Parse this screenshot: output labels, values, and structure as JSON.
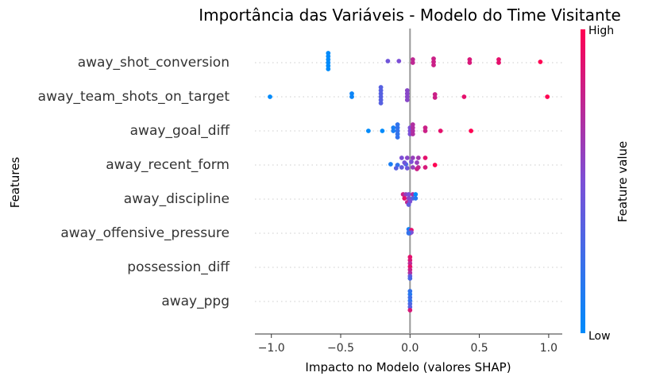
{
  "chart_data": {
    "type": "scatter",
    "title": "Importância das Variáveis - Modelo do Time Visitante",
    "xlabel": "Impacto no Modelo (valores SHAP)",
    "ylabel": "Features",
    "xlim": [
      -1.1,
      1.1
    ],
    "xticks": [
      -1.0,
      -0.5,
      0.0,
      0.5,
      1.0
    ],
    "xtick_labels": [
      "−1.0",
      "−0.5",
      "0.0",
      "0.5",
      "1.0"
    ],
    "colorbar": {
      "label": "Feature value",
      "high_label": "High",
      "low_label": "Low",
      "low_color": "#008bfb",
      "high_color": "#ff0052",
      "mid_color": "#7c4fd6"
    },
    "features": [
      {
        "name": "away_shot_conversion",
        "points": [
          {
            "x": -0.59,
            "v": 0.0,
            "dy": -12
          },
          {
            "x": -0.59,
            "v": 0.0,
            "dy": -8
          },
          {
            "x": -0.59,
            "v": 0.0,
            "dy": -4
          },
          {
            "x": -0.59,
            "v": 0.0,
            "dy": 0
          },
          {
            "x": -0.59,
            "v": 0.0,
            "dy": 4
          },
          {
            "x": -0.59,
            "v": 0.0,
            "dy": 8
          },
          {
            "x": -0.16,
            "v": 0.45,
            "dy": -2
          },
          {
            "x": -0.08,
            "v": 0.5,
            "dy": -2
          },
          {
            "x": 0.02,
            "v": 0.75,
            "dy": -4
          },
          {
            "x": 0.02,
            "v": 0.75,
            "dy": 0
          },
          {
            "x": 0.17,
            "v": 0.8,
            "dy": -5
          },
          {
            "x": 0.17,
            "v": 0.8,
            "dy": -1
          },
          {
            "x": 0.17,
            "v": 0.8,
            "dy": 3
          },
          {
            "x": 0.43,
            "v": 0.85,
            "dy": -4
          },
          {
            "x": 0.43,
            "v": 0.85,
            "dy": 0
          },
          {
            "x": 0.64,
            "v": 0.9,
            "dy": -4
          },
          {
            "x": 0.64,
            "v": 0.9,
            "dy": 0
          },
          {
            "x": 0.94,
            "v": 1.0,
            "dy": -1
          }
        ]
      },
      {
        "name": "away_team_shots_on_target",
        "points": [
          {
            "x": -1.01,
            "v": 0.0,
            "dy": 0
          },
          {
            "x": -0.42,
            "v": 0.05,
            "dy": -4
          },
          {
            "x": -0.42,
            "v": 0.05,
            "dy": 0
          },
          {
            "x": -0.21,
            "v": 0.35,
            "dy": -12
          },
          {
            "x": -0.21,
            "v": 0.35,
            "dy": -8
          },
          {
            "x": -0.21,
            "v": 0.35,
            "dy": -4
          },
          {
            "x": -0.21,
            "v": 0.35,
            "dy": 0
          },
          {
            "x": -0.21,
            "v": 0.35,
            "dy": 4
          },
          {
            "x": -0.21,
            "v": 0.35,
            "dy": 8
          },
          {
            "x": -0.02,
            "v": 0.55,
            "dy": -8
          },
          {
            "x": -0.02,
            "v": 0.55,
            "dy": -4
          },
          {
            "x": -0.02,
            "v": 0.55,
            "dy": 0
          },
          {
            "x": -0.02,
            "v": 0.55,
            "dy": 4
          },
          {
            "x": 0.18,
            "v": 0.8,
            "dy": -3
          },
          {
            "x": 0.18,
            "v": 0.8,
            "dy": 1
          },
          {
            "x": 0.39,
            "v": 0.9,
            "dy": 0
          },
          {
            "x": 0.99,
            "v": 1.0,
            "dy": 0
          }
        ]
      },
      {
        "name": "away_goal_diff",
        "points": [
          {
            "x": -0.3,
            "v": 0.0,
            "dy": 0
          },
          {
            "x": -0.2,
            "v": 0.0,
            "dy": 0
          },
          {
            "x": -0.12,
            "v": 0.1,
            "dy": -4
          },
          {
            "x": -0.12,
            "v": 0.1,
            "dy": 0
          },
          {
            "x": -0.09,
            "v": 0.2,
            "dy": -8
          },
          {
            "x": -0.09,
            "v": 0.2,
            "dy": -4
          },
          {
            "x": -0.09,
            "v": 0.2,
            "dy": 0
          },
          {
            "x": -0.09,
            "v": 0.2,
            "dy": 4
          },
          {
            "x": -0.09,
            "v": 0.2,
            "dy": 8
          },
          {
            "x": 0.0,
            "v": 0.5,
            "dy": -4
          },
          {
            "x": 0.0,
            "v": 0.5,
            "dy": 0
          },
          {
            "x": 0.0,
            "v": 0.5,
            "dy": 4
          },
          {
            "x": 0.02,
            "v": 0.7,
            "dy": -8
          },
          {
            "x": 0.02,
            "v": 0.7,
            "dy": -4
          },
          {
            "x": 0.02,
            "v": 0.7,
            "dy": 0
          },
          {
            "x": 0.02,
            "v": 0.7,
            "dy": 4
          },
          {
            "x": 0.11,
            "v": 0.8,
            "dy": -4
          },
          {
            "x": 0.11,
            "v": 0.8,
            "dy": 0
          },
          {
            "x": 0.22,
            "v": 0.9,
            "dy": 0
          },
          {
            "x": 0.44,
            "v": 1.0,
            "dy": 0
          }
        ]
      },
      {
        "name": "away_recent_form",
        "points": [
          {
            "x": -0.14,
            "v": 0.1,
            "dy": -1
          },
          {
            "x": -0.09,
            "v": 0.2,
            "dy": 0
          },
          {
            "x": -0.03,
            "v": 0.3,
            "dy": -1
          },
          {
            "x": -0.06,
            "v": 0.5,
            "dy": -9
          },
          {
            "x": -0.02,
            "v": 0.55,
            "dy": -9
          },
          {
            "x": 0.02,
            "v": 0.6,
            "dy": -9
          },
          {
            "x": 0.06,
            "v": 0.65,
            "dy": -9
          },
          {
            "x": 0.11,
            "v": 0.9,
            "dy": -9
          },
          {
            "x": -0.04,
            "v": 0.45,
            "dy": -3
          },
          {
            "x": 0.01,
            "v": 0.5,
            "dy": -4
          },
          {
            "x": 0.05,
            "v": 0.6,
            "dy": -3
          },
          {
            "x": -0.1,
            "v": 0.35,
            "dy": 4
          },
          {
            "x": -0.06,
            "v": 0.4,
            "dy": 3
          },
          {
            "x": -0.02,
            "v": 0.45,
            "dy": 4
          },
          {
            "x": 0.02,
            "v": 0.6,
            "dy": 3
          },
          {
            "x": 0.06,
            "v": 0.75,
            "dy": 3
          },
          {
            "x": 0.11,
            "v": 0.85,
            "dy": 3
          },
          {
            "x": 0.18,
            "v": 1.0,
            "dy": 0
          },
          {
            "x": 0.05,
            "v": 0.8,
            "dy": 5
          }
        ]
      },
      {
        "name": "away_discipline",
        "points": [
          {
            "x": -0.05,
            "v": 0.8,
            "dy": -6
          },
          {
            "x": -0.03,
            "v": 0.6,
            "dy": -6
          },
          {
            "x": -0.01,
            "v": 0.5,
            "dy": -6
          },
          {
            "x": 0.02,
            "v": 0.7,
            "dy": -6
          },
          {
            "x": 0.04,
            "v": 0.0,
            "dy": -6
          },
          {
            "x": -0.04,
            "v": 0.9,
            "dy": -1
          },
          {
            "x": -0.01,
            "v": 0.55,
            "dy": -1
          },
          {
            "x": 0.02,
            "v": 0.35,
            "dy": -1
          },
          {
            "x": 0.04,
            "v": 0.15,
            "dy": -1
          },
          {
            "x": -0.02,
            "v": 0.75,
            "dy": 4
          },
          {
            "x": 0.0,
            "v": 0.5,
            "dy": 3
          },
          {
            "x": -0.01,
            "v": 0.4,
            "dy": 7
          }
        ]
      },
      {
        "name": "away_offensive_pressure",
        "points": [
          {
            "x": -0.01,
            "v": 0.1,
            "dy": -5
          },
          {
            "x": 0.01,
            "v": 0.9,
            "dy": -4
          },
          {
            "x": -0.01,
            "v": 0.3,
            "dy": -1
          },
          {
            "x": 0.0,
            "v": 0.6,
            "dy": 0
          },
          {
            "x": 0.01,
            "v": 0.5,
            "dy": -1
          },
          {
            "x": -0.01,
            "v": 0.2,
            "dy": 0
          }
        ]
      },
      {
        "name": "possession_diff",
        "points": [
          {
            "x": 0.0,
            "v": 0.9,
            "dy": -13
          },
          {
            "x": 0.0,
            "v": 0.85,
            "dy": -9
          },
          {
            "x": 0.0,
            "v": 0.75,
            "dy": -5
          },
          {
            "x": 0.0,
            "v": 0.9,
            "dy": -1
          },
          {
            "x": 0.0,
            "v": 0.8,
            "dy": 3
          },
          {
            "x": 0.0,
            "v": 0.7,
            "dy": 7
          },
          {
            "x": 0.0,
            "v": 0.4,
            "dy": 11
          },
          {
            "x": 0.0,
            "v": 0.3,
            "dy": 14
          }
        ]
      },
      {
        "name": "away_ppg",
        "points": [
          {
            "x": 0.0,
            "v": 0.2,
            "dy": -13
          },
          {
            "x": 0.0,
            "v": 0.15,
            "dy": -9
          },
          {
            "x": 0.0,
            "v": 0.25,
            "dy": -5
          },
          {
            "x": 0.0,
            "v": 0.2,
            "dy": -1
          },
          {
            "x": 0.0,
            "v": 0.3,
            "dy": 3
          },
          {
            "x": 0.0,
            "v": 0.35,
            "dy": 7
          },
          {
            "x": 0.0,
            "v": 0.85,
            "dy": 11
          }
        ]
      }
    ]
  }
}
